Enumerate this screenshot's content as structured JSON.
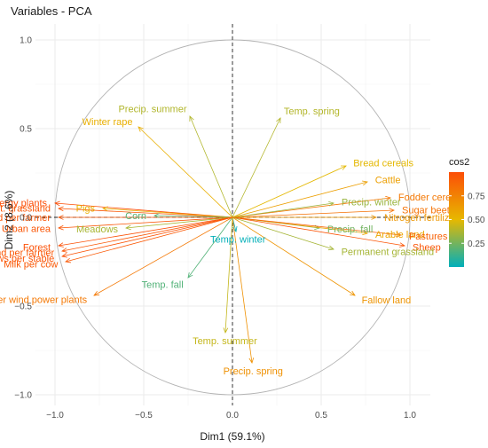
{
  "chart_data": {
    "type": "scatter",
    "subtype": "pca-variable-correlation-circle",
    "title": "Variables - PCA",
    "xlabel": "Dim1 (59.1%)",
    "ylabel": "Dim2 (8.6%)",
    "xlim": [
      -1.05,
      1.05
    ],
    "ylim": [
      -1.05,
      1.05
    ],
    "x_ticks": [
      -1.0,
      -0.5,
      0.0,
      0.5,
      1.0
    ],
    "y_ticks": [
      -1.0,
      -0.5,
      0.0,
      0.5,
      1.0
    ],
    "x_tick_labels": [
      "−1.0",
      "−0.5",
      "0.0",
      "0.5",
      "1.0"
    ],
    "y_tick_labels": [
      "−1.0",
      "−0.5",
      "0.0",
      "0.5",
      "1.0"
    ],
    "grid": true,
    "reference_lines": {
      "x": 0,
      "y": 0,
      "style": "dashed"
    },
    "unit_circle": true,
    "legend": {
      "title": "cos2",
      "position": "right",
      "ticks": [
        0.25,
        0.5,
        0.75
      ],
      "tick_labels": [
        "0.25",
        "0.50",
        "0.75"
      ],
      "range": [
        0.0,
        1.0
      ],
      "colors": [
        "#00AFBB",
        "#E7B800",
        "#FC4E07"
      ]
    },
    "variables": [
      {
        "name": "Precip. summer",
        "x": -0.24,
        "y": 0.57
      },
      {
        "name": "Temp. spring",
        "x": 0.27,
        "y": 0.56
      },
      {
        "name": "Winter rape",
        "x": -0.53,
        "y": 0.51
      },
      {
        "name": "Bread cereals",
        "x": 0.64,
        "y": 0.29
      },
      {
        "name": "Cattle",
        "x": 0.76,
        "y": 0.2
      },
      {
        "name": "Fodder cereals",
        "x": 0.89,
        "y": 0.11
      },
      {
        "name": "Sugar beets",
        "x": 0.91,
        "y": 0.04
      },
      {
        "name": "Precip. winter",
        "x": 0.57,
        "y": 0.08
      },
      {
        "name": "Nitrogen fertilizer",
        "x": 0.81,
        "y": 0.0
      },
      {
        "name": "Precip. fall",
        "x": 0.49,
        "y": -0.06
      },
      {
        "name": "Arable land",
        "x": 0.76,
        "y": -0.09
      },
      {
        "name": "Pastures",
        "x": 0.95,
        "y": -0.1
      },
      {
        "name": "Sheep",
        "x": 0.97,
        "y": -0.16
      },
      {
        "name": "Permanent grassland",
        "x": 0.57,
        "y": -0.18
      },
      {
        "name": "Fallow land",
        "x": 0.69,
        "y": -0.44
      },
      {
        "name": "Temp. winter",
        "x": 0.02,
        "y": -0.08
      },
      {
        "name": "Temp. fall",
        "x": -0.25,
        "y": -0.34
      },
      {
        "name": "Temp. summer",
        "x": -0.04,
        "y": -0.65
      },
      {
        "name": "Precip. spring",
        "x": 0.11,
        "y": -0.82
      },
      {
        "name": "Power bioenergy plants",
        "x": -1.0,
        "y": 0.08
      },
      {
        "name": "Ext. grassland",
        "x": -0.98,
        "y": 0.05
      },
      {
        "name": "Pigs",
        "x": -0.73,
        "y": 0.05
      },
      {
        "name": "Grassland per farmer",
        "x": -0.98,
        "y": 0.0
      },
      {
        "name": "Corn",
        "x": -0.44,
        "y": 0.01
      },
      {
        "name": "Urban area",
        "x": -0.98,
        "y": -0.06
      },
      {
        "name": "Meadows",
        "x": -0.6,
        "y": -0.06
      },
      {
        "name": "Forest",
        "x": -0.98,
        "y": -0.16
      },
      {
        "name": "Arable land per farmer",
        "x": -0.96,
        "y": -0.19
      },
      {
        "name": "Mean dairy cows per stable",
        "x": -0.96,
        "y": -0.22
      },
      {
        "name": "Milk per cow",
        "x": -0.94,
        "y": -0.25
      },
      {
        "name": "Power wind power plants",
        "x": -0.78,
        "y": -0.44
      }
    ]
  }
}
